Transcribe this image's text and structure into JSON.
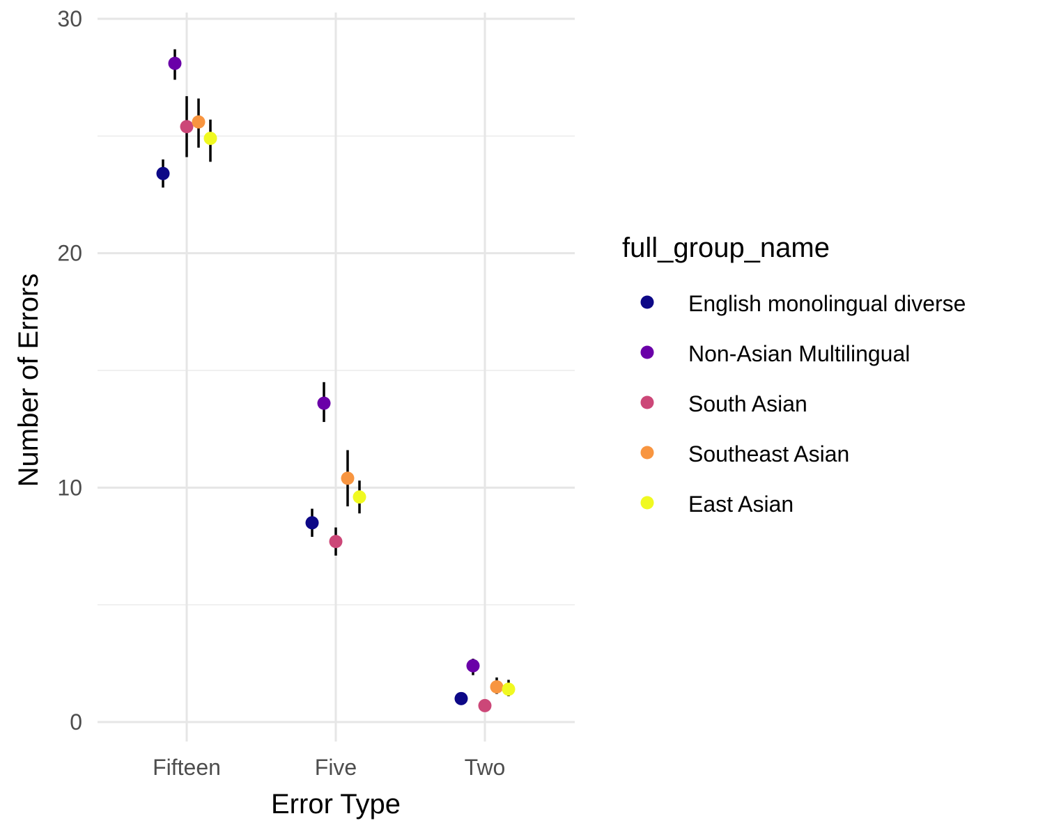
{
  "chart_data": {
    "type": "scatter",
    "subtype": "point-range",
    "title": "",
    "xlabel": "Error Type",
    "ylabel": "Number of Errors",
    "categories": [
      "Fifteen",
      "Five",
      "Two"
    ],
    "ylim": [
      -0.8,
      30.3
    ],
    "yticks": [
      0,
      10,
      20,
      30
    ],
    "ytick_labels": [
      "0",
      "10",
      "20",
      "30"
    ],
    "grid": true,
    "error_bar_color": "#000000",
    "legend": {
      "title": "full_group_name",
      "position": "right"
    },
    "series": [
      {
        "name": "English monolingual diverse",
        "color": "#0D0887",
        "values": [
          23.4,
          8.5,
          1.0
        ],
        "lower": [
          22.8,
          7.9,
          0.9
        ],
        "upper": [
          24.0,
          9.1,
          1.1
        ]
      },
      {
        "name": "Non-Asian Multilingual",
        "color": "#6A00A8",
        "values": [
          28.1,
          13.6,
          2.4
        ],
        "lower": [
          27.4,
          12.8,
          2.0
        ],
        "upper": [
          28.7,
          14.5,
          2.7
        ]
      },
      {
        "name": "South Asian",
        "color": "#CC4778",
        "values": [
          25.4,
          7.7,
          0.7
        ],
        "lower": [
          24.1,
          7.1,
          0.6
        ],
        "upper": [
          26.7,
          8.3,
          0.8
        ]
      },
      {
        "name": "Southeast Asian",
        "color": "#F89540",
        "values": [
          25.6,
          10.4,
          1.5
        ],
        "lower": [
          24.5,
          9.2,
          1.2
        ],
        "upper": [
          26.6,
          11.6,
          1.9
        ]
      },
      {
        "name": "East Asian",
        "color": "#F0F921",
        "values": [
          24.9,
          9.6,
          1.4
        ],
        "lower": [
          23.9,
          8.9,
          1.1
        ],
        "upper": [
          25.7,
          10.3,
          1.8
        ]
      }
    ]
  }
}
